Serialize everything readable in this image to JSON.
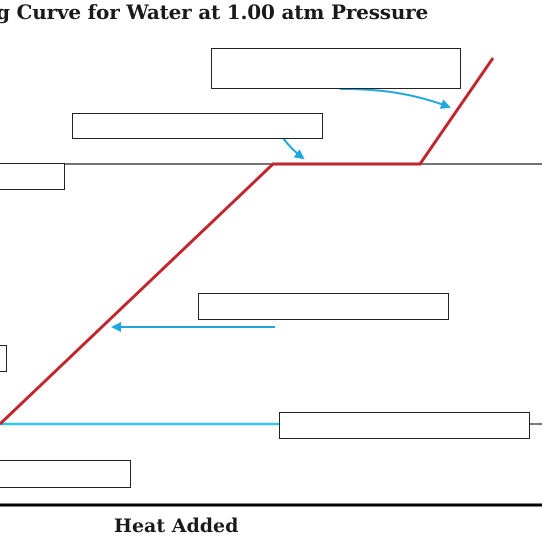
{
  "title": "g Curve for Water at 1.00 atm Pressure",
  "x_axis_label": "Heat Added",
  "colors": {
    "curve": "#c0262d",
    "arrow": "#1ea6df",
    "cyan_line": "#35c6e6",
    "reference_line": "#222222",
    "axis": "#000000",
    "box_border": "#222222"
  },
  "label_boxes": [
    {
      "name": "label-box-gas-region",
      "value": ""
    },
    {
      "name": "label-box-boiling",
      "value": ""
    },
    {
      "name": "label-box-boiling-point",
      "value": ""
    },
    {
      "name": "label-box-liquid-region",
      "value": ""
    },
    {
      "name": "label-box-side-partial",
      "value": ""
    },
    {
      "name": "label-box-melting",
      "value": ""
    },
    {
      "name": "label-box-bottom-left",
      "value": ""
    }
  ]
}
